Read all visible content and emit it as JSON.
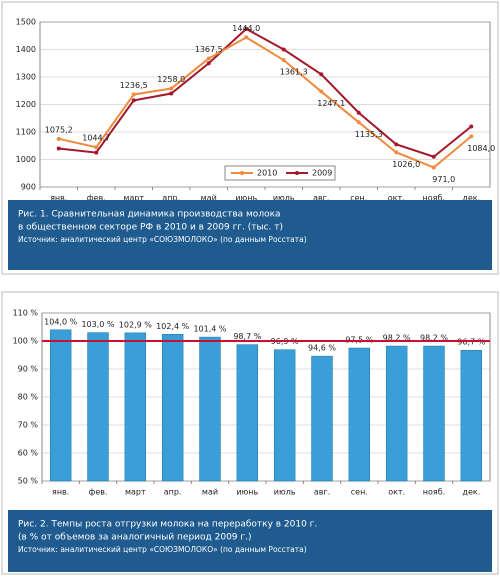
{
  "chart_data": [
    {
      "type": "line",
      "categories": [
        "янв.",
        "фев.",
        "март",
        "апр.",
        "май",
        "июнь",
        "июль",
        "авг.",
        "сен.",
        "окт.",
        "нояб.",
        "дек."
      ],
      "series": [
        {
          "name": "2010",
          "color": "#f08a3c",
          "values": [
            1075.2,
            1044.7,
            1236.5,
            1258.0,
            1367.5,
            1444.0,
            1361.3,
            1247.1,
            1135.3,
            1026.0,
            971.0,
            1084.0
          ],
          "value_labels": [
            "1075,2",
            "1044,7",
            "1236,5",
            "1258,0",
            "1367,5",
            "1444,0",
            "1361,3",
            "1247,1",
            "1135,3",
            "1026,0",
            "971,0",
            "1084,0"
          ]
        },
        {
          "name": "2009",
          "color": "#a3192b",
          "values": [
            1040,
            1025,
            1215,
            1240,
            1350,
            1475,
            1400,
            1310,
            1170,
            1055,
            1010,
            1120
          ]
        }
      ],
      "ylim": [
        900,
        1500
      ],
      "yticks": [
        900,
        1000,
        1100,
        1200,
        1300,
        1400,
        1500
      ],
      "grid": true,
      "legend": "bottom",
      "caption_lines": [
        "Рис. 1. Сравнительная динамика производства молока",
        "в общественном секторе РФ в 2010 и в 2009 гг. (тыс. т)",
        "Источник: аналитический центр «СОЮЗМОЛОКО» (по данным Росстата)"
      ]
    },
    {
      "type": "bar",
      "categories": [
        "янв.",
        "фев.",
        "март",
        "апр.",
        "май",
        "июнь",
        "июль",
        "авг.",
        "сен.",
        "окт.",
        "нояб.",
        "дек."
      ],
      "values": [
        104.0,
        103.0,
        102.9,
        102.4,
        101.4,
        98.7,
        96.9,
        94.6,
        97.5,
        98.2,
        98.2,
        96.7
      ],
      "value_labels": [
        "104,0 %",
        "103,0 %",
        "102,9 %",
        "102,4 %",
        "101,4 %",
        "98,7 %",
        "96,9 %",
        "94,6 %",
        "97,5 %",
        "98,2 %",
        "98,2 %",
        "96,7 %"
      ],
      "color": "#3a9fd9",
      "reference_line": 100,
      "reference_color": "#c8102e",
      "ylim": [
        50,
        110
      ],
      "yticks": [
        {
          "value": 50,
          "label": "50 %"
        },
        {
          "value": 60,
          "label": "60 %"
        },
        {
          "value": 70,
          "label": "70 %"
        },
        {
          "value": 80,
          "label": "80 %"
        },
        {
          "value": 90,
          "label": "90 %"
        },
        {
          "value": 100,
          "label": "100 %"
        },
        {
          "value": 110,
          "label": "110 %"
        }
      ],
      "grid": true,
      "caption_lines": [
        "Рис. 2. Темпы роста отгрузки молока на переработку в 2010 г.",
        "(в % от объемов за аналогичный период 2009 г.)",
        "Источник: аналитический центр «СОЮЗМОЛОКО» (по данным Росстата)"
      ]
    }
  ]
}
